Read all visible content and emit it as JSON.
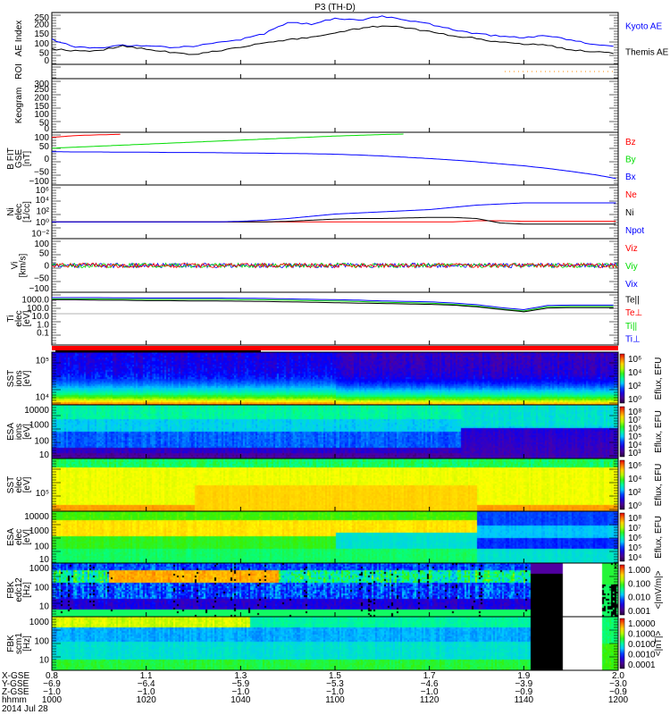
{
  "title": "P3 (TH-D)",
  "colors": {
    "red": "#ff0000",
    "green": "#00dd00",
    "blue": "#0000ff",
    "black": "#000000",
    "orange": "#ff8800"
  },
  "panels": [
    {
      "id": "ae",
      "ylabel": [
        "AE Index"
      ],
      "ticks": [
        "250",
        "200",
        "150",
        "100",
        "50",
        "0"
      ],
      "tickvals": [
        250,
        200,
        150,
        100,
        50,
        0
      ],
      "legend": [
        {
          "text": "Kyoto AE",
          "color": "#0000ff"
        },
        {
          "text": "Themis AE",
          "color": "#000000"
        }
      ]
    },
    {
      "id": "roi",
      "ylabel": [
        "ROI"
      ],
      "ticks": [],
      "tickvals": [],
      "legend": []
    },
    {
      "id": "keogram",
      "ylabel": [
        "Keogram"
      ],
      "ticks": [
        "300",
        "250",
        "200",
        "150",
        "100",
        "50",
        "0"
      ],
      "tickvals": [
        300,
        250,
        200,
        150,
        100,
        50,
        0
      ],
      "legend": []
    },
    {
      "id": "bfield",
      "ylabel": [
        "B FIT",
        "GSE",
        "[nT]"
      ],
      "ticks": [
        "100",
        "50",
        "0",
        "−50",
        "−100"
      ],
      "tickvals": [
        100,
        50,
        0,
        -50,
        -100
      ],
      "legend": [
        {
          "text": "Bz",
          "color": "#ff0000"
        },
        {
          "text": "By",
          "color": "#00dd00"
        },
        {
          "text": "Bx",
          "color": "#0000ff"
        }
      ]
    },
    {
      "id": "density",
      "ylabel": [
        "Ni",
        "elec",
        "[1/cc]"
      ],
      "ticks": [
        "10⁶",
        "10⁴",
        "10²",
        "10⁰",
        "10⁻²"
      ],
      "tickvals": [
        6,
        4,
        2,
        0,
        -2
      ],
      "legend": [
        {
          "text": "Ne",
          "color": "#ff0000"
        },
        {
          "text": "Ni",
          "color": "#000000"
        },
        {
          "text": "Npot",
          "color": "#0000ff"
        }
      ]
    },
    {
      "id": "velocity",
      "ylabel": [
        "Vi",
        "[km/s]"
      ],
      "ticks": [
        "100",
        "50",
        "0",
        "−50",
        "−100"
      ],
      "tickvals": [
        100,
        50,
        0,
        -50,
        -100
      ],
      "legend": [
        {
          "text": "Viz",
          "color": "#ff0000"
        },
        {
          "text": "Viy",
          "color": "#00dd00"
        },
        {
          "text": "Vix",
          "color": "#0000ff"
        }
      ]
    },
    {
      "id": "temperature",
      "ylabel": [
        "Ti",
        "elec",
        "[eV]"
      ],
      "ticks": [
        "1000.0",
        "100.0",
        "10.0",
        "1.0",
        "0.1"
      ],
      "tickvals": [
        3,
        2,
        1,
        0,
        -1
      ],
      "legend": [
        {
          "text": "Te||",
          "color": "#000000"
        },
        {
          "text": "Te⊥",
          "color": "#ff0000"
        },
        {
          "text": "Ti||",
          "color": "#00dd00"
        },
        {
          "text": "Ti⊥",
          "color": "#0000ff"
        }
      ]
    },
    {
      "id": "sst-ions",
      "ylabel": [
        "SST",
        "ions",
        "[eV]"
      ],
      "ticks": [
        "10⁵",
        "10⁴"
      ],
      "tickvals": [
        0.85,
        0.15
      ],
      "cbar": [
        "10⁶",
        "10⁴",
        "10²",
        "10⁰"
      ],
      "cbar_title": "Eflux, EFU",
      "legend": []
    },
    {
      "id": "esa-ions",
      "ylabel": [
        "ESA",
        "ions",
        "[eV]"
      ],
      "ticks": [
        "10000",
        "1000",
        "100",
        "10"
      ],
      "tickvals": [
        0.92,
        0.63,
        0.33,
        0.04
      ],
      "cbar": [
        "10⁸",
        "10⁷",
        "10⁶",
        "10⁵",
        "10⁴",
        "10³"
      ],
      "cbar_title": "Eflux, EFU",
      "legend": []
    },
    {
      "id": "sst-elec",
      "ylabel": [
        "SST",
        "elec",
        "[eV]"
      ],
      "ticks": [
        "10⁵"
      ],
      "tickvals": [
        0.35
      ],
      "cbar": [
        "10⁶",
        "10⁴",
        "10²",
        "10⁰"
      ],
      "cbar_title": "Eflux, EFU",
      "legend": []
    },
    {
      "id": "esa-elec",
      "ylabel": [
        "ESA",
        "elec",
        "[eV]"
      ],
      "ticks": [
        "10000",
        "1000",
        "100",
        "10"
      ],
      "tickvals": [
        0.92,
        0.63,
        0.33,
        0.04
      ],
      "cbar": [
        "10⁸",
        "10⁷",
        "10⁶",
        "10⁵",
        "10⁴"
      ],
      "cbar_title": "Eflux, EFU",
      "legend": []
    },
    {
      "id": "fbk-edc12",
      "ylabel": [
        "FBK",
        "edc12",
        "[Hz]"
      ],
      "ticks": [
        "1000",
        "100",
        "10"
      ],
      "tickvals": [
        0.92,
        0.55,
        0.2
      ],
      "cbar": [
        "1.000",
        "0.100",
        "0.010",
        "0.001"
      ],
      "cbar_title": "<|mV/m|>",
      "legend": []
    },
    {
      "id": "fbk-scm1",
      "ylabel": [
        "FBK",
        "scm1",
        "[Hz]"
      ],
      "ticks": [
        "1000",
        "100",
        "10"
      ],
      "tickvals": [
        0.92,
        0.55,
        0.2
      ],
      "cbar": [
        "1.0000",
        "0.1000",
        "0.0100",
        "0.0010",
        "0.0001"
      ],
      "cbar_title": "<|nT|>",
      "legend": []
    }
  ],
  "xaxis": {
    "row_labels": [
      "X-GSE",
      "Y-GSE",
      "Z-GSE",
      "hhmm"
    ],
    "date": "2014 Jul 28",
    "columns": [
      {
        "x": "0.8",
        "y": "−6.9",
        "z": "−1.0",
        "hhmm": "1000"
      },
      {
        "x": "1.1",
        "y": "−6.4",
        "z": "−1.0",
        "hhmm": "1020"
      },
      {
        "x": "1.3",
        "y": "−5.9",
        "z": "−1.0",
        "hhmm": "1040"
      },
      {
        "x": "1.5",
        "y": "−5.3",
        "z": "−1.0",
        "hhmm": "1100"
      },
      {
        "x": "1.7",
        "y": "−4.6",
        "z": "−1.0",
        "hhmm": "1120"
      },
      {
        "x": "1.9",
        "y": "−3.9",
        "z": "−0.9",
        "hhmm": "1140"
      },
      {
        "x": "2.0",
        "y": "−3.0",
        "z": "−0.9",
        "hhmm": "1200"
      }
    ]
  },
  "chart_data": {
    "type": "line",
    "title": "P3 (TH-D)",
    "x_unit": "minutes since 10:00 UT, 2014 Jul 28",
    "x": [
      0,
      5,
      10,
      15,
      20,
      25,
      30,
      35,
      40,
      45,
      50,
      55,
      60,
      65,
      70,
      75,
      80,
      85,
      90,
      95,
      100,
      105,
      110,
      115,
      120
    ],
    "series": [
      {
        "panel": "ae",
        "name": "Kyoto AE",
        "values": [
          120,
          80,
          75,
          90,
          85,
          80,
          85,
          105,
          120,
          150,
          205,
          200,
          230,
          220,
          240,
          220,
          200,
          170,
          150,
          135,
          130,
          140,
          115,
          95,
          80
        ]
      },
      {
        "panel": "ae",
        "name": "Themis AE",
        "values": [
          70,
          62,
          60,
          88,
          70,
          55,
          42,
          60,
          80,
          100,
          120,
          130,
          155,
          175,
          190,
          180,
          160,
          140,
          125,
          105,
          95,
          90,
          65,
          55,
          50
        ]
      },
      {
        "panel": "bfield",
        "name": "Bz",
        "values": [
          85,
          92,
          95,
          97,
          null,
          null,
          null,
          null,
          null,
          null,
          null,
          null,
          null,
          null,
          null,
          null,
          null,
          null,
          null,
          null,
          null,
          null,
          null,
          null,
          null
        ]
      },
      {
        "panel": "bfield",
        "name": "By",
        "values": [
          42,
          46,
          50,
          54,
          58,
          62,
          66,
          70,
          74,
          78,
          82,
          86,
          90,
          93,
          96,
          98,
          null,
          null,
          null,
          null,
          null,
          null,
          null,
          null,
          null
        ]
      },
      {
        "panel": "bfield",
        "name": "Bx",
        "values": [
          28,
          27,
          27,
          26,
          26,
          25,
          25,
          24,
          23,
          22,
          21,
          20,
          18,
          15,
          11,
          6,
          1,
          -5,
          -12,
          -20,
          -28,
          -38,
          -50,
          -63,
          -80
        ]
      },
      {
        "panel": "density",
        "name": "Ne (log10)",
        "values": [
          0,
          0,
          0,
          0,
          0,
          0,
          0,
          0,
          0,
          0,
          0,
          0,
          0,
          0,
          0,
          0,
          0,
          0,
          0.2,
          0.2,
          0.1,
          0.1,
          0.1,
          0.1,
          0.1
        ]
      },
      {
        "panel": "density",
        "name": "Ni (log10)",
        "values": [
          0,
          0,
          0,
          0,
          0,
          0,
          0,
          0,
          0,
          0,
          0.1,
          0.3,
          0.5,
          0.6,
          0.6,
          0.7,
          0.8,
          0.8,
          0.6,
          -0.2,
          -0.4,
          -0.4,
          -0.4,
          -0.4,
          -0.4
        ]
      },
      {
        "panel": "density",
        "name": "Npot (log10)",
        "values": [
          0,
          0,
          0,
          0,
          0,
          0,
          0,
          0,
          0.1,
          0.3,
          0.6,
          1.0,
          1.4,
          1.6,
          1.8,
          2.0,
          2.2,
          2.6,
          3.0,
          3.2,
          3.4,
          3.4,
          3.4,
          3.4,
          3.4
        ]
      },
      {
        "panel": "temperature",
        "name": "Ti|| (log10)",
        "values": [
          3.05,
          3.05,
          3.05,
          3.02,
          3.0,
          3.0,
          3.0,
          3.0,
          2.98,
          2.95,
          2.9,
          2.85,
          2.8,
          2.75,
          2.65,
          2.6,
          2.55,
          2.4,
          2.2,
          1.85,
          1.6,
          2.1,
          2.15,
          2.15,
          2.15
        ]
      },
      {
        "panel": "temperature",
        "name": "Te|| (log10)",
        "values": [
          2.95,
          2.95,
          2.9,
          2.9,
          2.85,
          2.85,
          2.8,
          2.8,
          2.78,
          2.75,
          2.7,
          2.65,
          2.6,
          2.55,
          2.5,
          2.45,
          2.4,
          2.3,
          2.1,
          1.8,
          1.5,
          1.95,
          2.0,
          2.0,
          2.0
        ]
      }
    ],
    "ylims": {
      "ae": [
        0,
        250
      ],
      "bfield": [
        -100,
        100
      ],
      "velocity": [
        -100,
        100
      ],
      "keogram": [
        0,
        300
      ]
    }
  }
}
